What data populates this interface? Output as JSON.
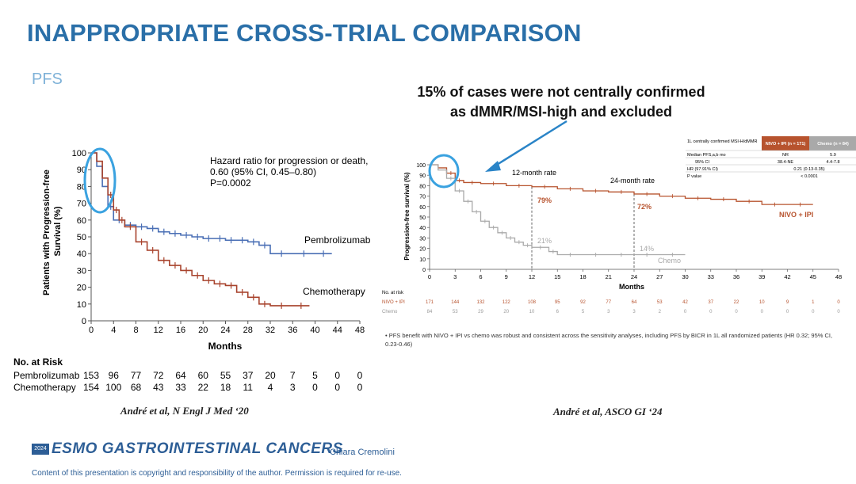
{
  "slide": {
    "title": "INAPPROPRIATE CROSS-TRIAL COMPARISON",
    "subtitle": "PFS",
    "note_line1": "15% of cases were not centrally confirmed",
    "note_line2": "as dMMR/MSI-high and excluded",
    "citation_left": "André et al, N Engl J Med ‘20",
    "citation_right": "André et al, ASCO GI ‘24",
    "footer_year": "2024",
    "footer_brand": "ESMO GASTROINTESTINAL CANCERS",
    "footer_author": "Chiara Cremolini",
    "footer_copyright": "Content of this presentation is copyright and responsibility of the author. Permission is required for re-use.",
    "bullet_text": "PFS benefit with NIVO + IPI vs chemo was robust and consistent across the sensitivity analyses, including PFS by BICR in 1L all randomized patients (HR 0.32; 95% CI, 0.23-0.46)",
    "colors": {
      "accent": "#2a6fa8",
      "pembro": "#4a6fb5",
      "chemo": "#a8432d",
      "nivo": "#b7532e",
      "chemo2": "#a9a9a9",
      "highlight": "#3aa2e0"
    }
  },
  "chart_data": [
    {
      "type": "line",
      "title": "",
      "xlabel": "Months",
      "ylabel": "Patients with Progression-free Survival (%)",
      "xlim": [
        0,
        48
      ],
      "ylim": [
        0,
        100
      ],
      "xticks": [
        0,
        4,
        8,
        12,
        16,
        20,
        24,
        28,
        32,
        36,
        40,
        44,
        48
      ],
      "yticks": [
        0,
        10,
        20,
        30,
        40,
        50,
        60,
        70,
        80,
        90,
        100
      ],
      "annotation_lines": [
        "Hazard ratio for progression or death,",
        "0.60 (95% CI, 0.45–0.80)",
        "P=0.0002"
      ],
      "series": [
        {
          "name": "Pembrolizumab",
          "x": [
            0,
            1,
            2,
            3,
            4,
            6,
            8,
            10,
            12,
            14,
            16,
            18,
            20,
            22,
            24,
            26,
            28,
            30,
            32,
            36,
            40,
            43
          ],
          "y": [
            100,
            92,
            80,
            68,
            60,
            57,
            56,
            55,
            53,
            52,
            51,
            50,
            49,
            49,
            48,
            48,
            47,
            45,
            40,
            40,
            40,
            40
          ]
        },
        {
          "name": "Chemotherapy",
          "x": [
            0,
            1,
            2,
            3,
            4,
            5,
            6,
            8,
            10,
            12,
            14,
            16,
            18,
            20,
            22,
            24,
            26,
            28,
            30,
            32,
            36,
            39
          ],
          "y": [
            100,
            95,
            85,
            75,
            66,
            60,
            56,
            47,
            42,
            36,
            33,
            30,
            27,
            24,
            22,
            21,
            17,
            14,
            10,
            9,
            9,
            9
          ]
        }
      ],
      "risk_table": {
        "title": "No. at Risk",
        "rows": [
          {
            "name": "Pembrolizumab",
            "values": [
              "153",
              "96",
              "77",
              "72",
              "64",
              "60",
              "55",
              "37",
              "20",
              "7",
              "5",
              "0",
              "0"
            ]
          },
          {
            "name": "Chemotherapy",
            "values": [
              "154",
              "100",
              "68",
              "43",
              "33",
              "22",
              "18",
              "11",
              "4",
              "3",
              "0",
              "0",
              "0"
            ]
          }
        ]
      }
    },
    {
      "type": "line",
      "title": "",
      "xlabel": "Months",
      "ylabel": "Progression-free survival (%)",
      "xlim": [
        0,
        48
      ],
      "ylim": [
        0,
        100
      ],
      "xticks": [
        0,
        3,
        6,
        9,
        12,
        15,
        18,
        21,
        24,
        27,
        30,
        33,
        36,
        39,
        42,
        45,
        48
      ],
      "yticks": [
        0,
        10,
        20,
        30,
        40,
        50,
        60,
        70,
        80,
        90,
        100
      ],
      "annotations": [
        {
          "text": "12-month rate"
        },
        {
          "text": "24-month rate"
        },
        {
          "text": "79%",
          "series": "NIVO + IPI",
          "x": 12
        },
        {
          "text": "72%",
          "series": "NIVO + IPI",
          "x": 24
        },
        {
          "text": "21%",
          "series": "Chemo",
          "x": 12
        },
        {
          "text": "14%",
          "series": "Chemo",
          "x": 24
        }
      ],
      "series": [
        {
          "name": "NIVO + IPI",
          "x": [
            0,
            1,
            2,
            3,
            4,
            6,
            9,
            12,
            15,
            18,
            21,
            24,
            27,
            30,
            33,
            36,
            39,
            42,
            45
          ],
          "y": [
            100,
            97,
            92,
            85,
            83,
            82,
            80,
            79,
            77,
            75,
            74,
            72,
            70,
            68,
            67,
            65,
            62,
            62,
            62
          ]
        },
        {
          "name": "Chemo",
          "x": [
            0,
            1,
            2,
            3,
            4,
            5,
            6,
            7,
            8,
            9,
            10,
            11,
            12,
            14,
            15,
            18,
            21,
            24,
            27,
            30
          ],
          "y": [
            100,
            95,
            87,
            75,
            65,
            55,
            46,
            40,
            35,
            30,
            26,
            23,
            21,
            17,
            14,
            14,
            14,
            14,
            14,
            14
          ]
        }
      ],
      "risk_table": {
        "title": "No. at risk",
        "rows": [
          {
            "name": "NIVO + IPI",
            "values": [
              "171",
              "144",
              "132",
              "122",
              "108",
              "95",
              "92",
              "77",
              "64",
              "53",
              "42",
              "37",
              "22",
              "10",
              "9",
              "1",
              "0"
            ]
          },
          {
            "name": "Chemo",
            "values": [
              "84",
              "53",
              "29",
              "20",
              "10",
              "6",
              "5",
              "3",
              "3",
              "2",
              "0",
              "0",
              "0",
              "0",
              "0",
              "0",
              "0"
            ]
          }
        ]
      },
      "summary_table": {
        "header": [
          "1L centrally confirmed MSI-H/dMMR",
          "NIVO + IPI (n = 171)",
          "Chemo (n = 84)"
        ],
        "rows": [
          [
            "Median PFS,a,b mo",
            "NR",
            "5.9"
          ],
          [
            "95% CI",
            "38.4-NE",
            "4.4-7.8"
          ],
          [
            "HR (97.91% CI)",
            "0.21 (0.13-0.35)",
            ""
          ],
          [
            "P value",
            "< 0.0001",
            ""
          ]
        ]
      }
    }
  ]
}
